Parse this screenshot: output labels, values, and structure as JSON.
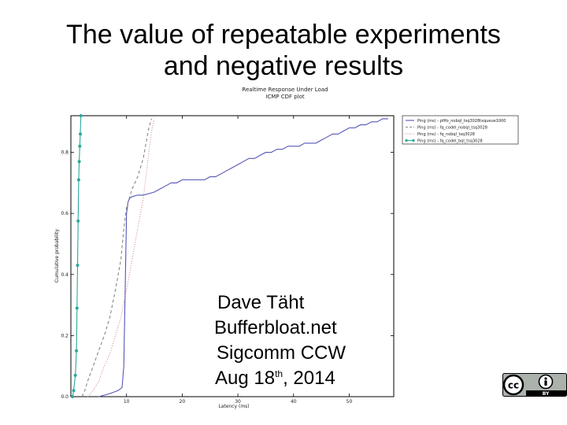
{
  "slide": {
    "title_line1": "The value of repeatable experiments",
    "title_line2": "and negative results",
    "author_name": "Dave Täht",
    "author_org": "Bufferbloat.net",
    "event": "Sigcomm CCW",
    "date_pre": "Aug 18",
    "date_sup": "th",
    "date_post": ", 2014",
    "license_label": "BY",
    "license_icons": [
      "cc-icon",
      "attribution-person-icon"
    ]
  },
  "chart_data": {
    "type": "line",
    "title": "Realtime Response Under Load",
    "subtitle": "ICMP CDF plot",
    "xlabel": "Latency (ms)",
    "ylabel": "Cumulative probability",
    "xlim": [
      0,
      58
    ],
    "ylim": [
      0,
      0.92
    ],
    "xticks": [
      10,
      20,
      30,
      40,
      50
    ],
    "yticks": [
      0.0,
      0.2,
      0.4,
      0.6,
      0.8
    ],
    "ytick_labels": [
      "0.0",
      "0.2",
      "0.4",
      "0.6",
      "0.8"
    ],
    "grid": false,
    "legend_position": "outside-top-right",
    "series": [
      {
        "name": "Ping (ms) - pfifo_nobql_tsq3028txqueue1000",
        "color": "#5555bb",
        "style": "solid",
        "x": [
          5.0,
          7.0,
          8.5,
          9.2,
          9.5,
          9.7,
          9.9,
          10.0,
          10.3,
          10.6,
          11.0,
          12.0,
          13.0,
          14.0,
          15.0,
          16.0,
          17.0,
          18.0,
          19.0,
          20.0,
          22.0,
          24.0,
          25.0,
          26.0,
          27.0,
          28.0,
          29.0,
          30.0,
          31.0,
          32.0,
          33.0,
          34.0,
          35.0,
          36.0,
          37.0,
          38.0,
          39.0,
          40.0,
          41.0,
          42.0,
          43.0,
          44.0,
          45.0,
          46.0,
          47.0,
          48.0,
          49.0,
          50.0,
          51.0,
          52.0,
          53.0,
          54.0,
          55.0,
          56.0,
          57.0
        ],
        "y": [
          0.0,
          0.01,
          0.02,
          0.03,
          0.1,
          0.3,
          0.5,
          0.6,
          0.64,
          0.65,
          0.655,
          0.66,
          0.66,
          0.665,
          0.67,
          0.68,
          0.69,
          0.7,
          0.7,
          0.71,
          0.71,
          0.71,
          0.72,
          0.72,
          0.73,
          0.74,
          0.75,
          0.76,
          0.77,
          0.78,
          0.78,
          0.79,
          0.8,
          0.8,
          0.81,
          0.81,
          0.82,
          0.82,
          0.82,
          0.83,
          0.83,
          0.83,
          0.84,
          0.85,
          0.86,
          0.86,
          0.87,
          0.88,
          0.88,
          0.89,
          0.89,
          0.9,
          0.9,
          0.91,
          0.91
        ]
      },
      {
        "name": "Ping (ms) - fq_codel_nobql_tsq3028",
        "color": "#888888",
        "style": "dashed",
        "x": [
          2.0,
          2.5,
          3.0,
          4.0,
          5.0,
          6.0,
          7.0,
          8.0,
          9.0,
          9.5,
          10.0,
          11.0,
          12.0,
          13.0,
          13.5,
          14.0,
          14.5
        ],
        "y": [
          0.0,
          0.02,
          0.05,
          0.1,
          0.15,
          0.2,
          0.26,
          0.35,
          0.45,
          0.55,
          0.62,
          0.68,
          0.72,
          0.78,
          0.83,
          0.88,
          0.91
        ]
      },
      {
        "name": "Ping (ms) - fq_nobql_tsq3028",
        "color": "#d08888",
        "style": "dotted",
        "x": [
          3.0,
          4.0,
          5.0,
          6.0,
          7.0,
          8.0,
          9.0,
          10.0,
          11.0,
          12.0,
          12.5,
          13.0,
          13.5,
          14.0,
          14.5,
          15.0
        ],
        "y": [
          0.0,
          0.02,
          0.05,
          0.1,
          0.14,
          0.2,
          0.26,
          0.35,
          0.45,
          0.55,
          0.6,
          0.65,
          0.72,
          0.8,
          0.87,
          0.91
        ]
      },
      {
        "name": "Ping (ms) - fq_codel_bql_tsq3028",
        "color": "#2ba89a",
        "style": "solid-markers",
        "x": [
          0.3,
          0.5,
          0.8,
          1.0,
          1.1,
          1.2,
          1.3,
          1.4,
          1.5,
          1.6,
          1.7,
          1.8
        ],
        "y": [
          0.0,
          0.02,
          0.07,
          0.15,
          0.29,
          0.43,
          0.575,
          0.71,
          0.77,
          0.82,
          0.86,
          0.92
        ]
      }
    ]
  }
}
